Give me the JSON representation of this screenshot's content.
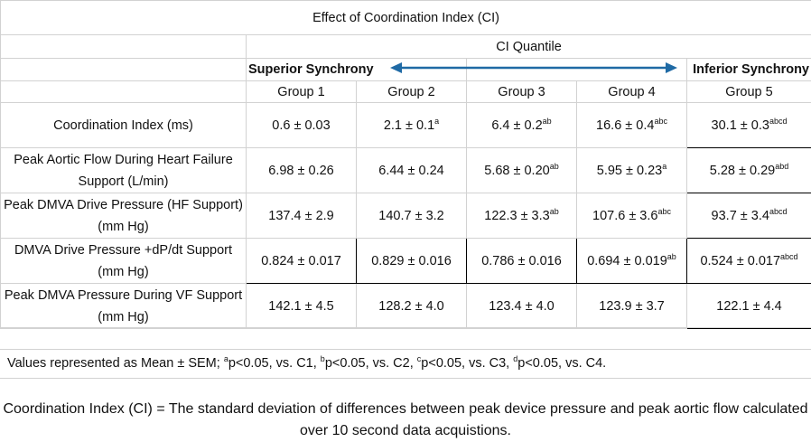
{
  "title": "Effect of Coordination Index (CI)",
  "quantile_header": "CI Quantile",
  "superior_label": "Superior Synchrony",
  "inferior_label": "Inferior Synchrony",
  "groups": [
    "Group 1",
    "Group 2",
    "Group 3",
    "Group 4",
    "Group 5"
  ],
  "rows": [
    {
      "label": "Coordination Index  (ms)",
      "cells": [
        {
          "v": "0.6 ± 0.03",
          "s": ""
        },
        {
          "v": "2.1 ± 0.1",
          "s": "a"
        },
        {
          "v": "6.4 ± 0.2",
          "s": "ab"
        },
        {
          "v": "16.6 ± 0.4",
          "s": "abc"
        },
        {
          "v": "30.1 ± 0.3",
          "s": "abcd"
        }
      ]
    },
    {
      "label": "Peak Aortic Flow During Heart Failure Support   (L/min)",
      "cells": [
        {
          "v": "6.98 ± 0.26",
          "s": ""
        },
        {
          "v": "6.44 ± 0.24",
          "s": ""
        },
        {
          "v": "5.68 ± 0.20",
          "s": "ab"
        },
        {
          "v": "5.95 ± 0.23",
          "s": "a"
        },
        {
          "v": "5.28 ± 0.29",
          "s": "abd"
        }
      ]
    },
    {
      "label": "Peak DMVA Drive Pressure (HF Support) (mm Hg)",
      "cells": [
        {
          "v": "137.4 ± 2.9",
          "s": ""
        },
        {
          "v": "140.7 ± 3.2",
          "s": ""
        },
        {
          "v": "122.3 ± 3.3",
          "s": "ab"
        },
        {
          "v": "107.6 ± 3.6",
          "s": "abc"
        },
        {
          "v": "93.7 ± 3.4",
          "s": "abcd"
        }
      ]
    },
    {
      "label": "DMVA Drive Pressure +dP/dt Support (mm Hg)",
      "cells": [
        {
          "v": "0.824 ± 0.017",
          "s": ""
        },
        {
          "v": "0.829 ± 0.016",
          "s": ""
        },
        {
          "v": "0.786 ± 0.016",
          "s": ""
        },
        {
          "v": "0.694 ± 0.019",
          "s": "ab"
        },
        {
          "v": "0.524 ± 0.017",
          "s": "abcd"
        }
      ]
    },
    {
      "label": "Peak DMVA Pressure During  VF Support (mm Hg)",
      "cells": [
        {
          "v": "142.1 ± 4.5",
          "s": ""
        },
        {
          "v": "128.2 ± 4.0",
          "s": ""
        },
        {
          "v": "123.4 ± 4.0",
          "s": ""
        },
        {
          "v": "123.9 ± 3.7",
          "s": ""
        },
        {
          "v": "122.1 ± 4.4",
          "s": ""
        }
      ]
    }
  ],
  "footnote": {
    "prefix": "Values represented as Mean ± SEM; ",
    "items": [
      {
        "sup": "a",
        "text": "p<0.05, vs. C1, "
      },
      {
        "sup": "b",
        "text": "p<0.05, vs. C2, "
      },
      {
        "sup": "c",
        "text": "p<0.05, vs. C3, "
      },
      {
        "sup": "d",
        "text": "p<0.05, vs. C4."
      }
    ]
  },
  "definition": "Coordination Index (CI) = The standard deviation of differences between peak device pressure and peak aortic flow calculated over 10 second data acquistions.",
  "colors": {
    "arrow": "#1f6aa5",
    "border": "#000000",
    "grid": "#d2d2d2"
  }
}
